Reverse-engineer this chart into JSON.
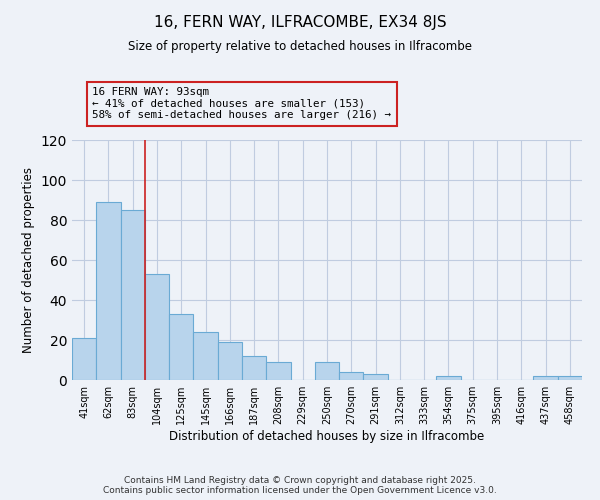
{
  "title": "16, FERN WAY, ILFRACOMBE, EX34 8JS",
  "subtitle": "Size of property relative to detached houses in Ilfracombe",
  "xlabel": "Distribution of detached houses by size in Ilfracombe",
  "ylabel": "Number of detached properties",
  "categories": [
    "41sqm",
    "62sqm",
    "83sqm",
    "104sqm",
    "125sqm",
    "145sqm",
    "166sqm",
    "187sqm",
    "208sqm",
    "229sqm",
    "250sqm",
    "270sqm",
    "291sqm",
    "312sqm",
    "333sqm",
    "354sqm",
    "375sqm",
    "395sqm",
    "416sqm",
    "437sqm",
    "458sqm"
  ],
  "values": [
    21,
    89,
    85,
    53,
    33,
    24,
    19,
    12,
    9,
    0,
    9,
    4,
    3,
    0,
    0,
    2,
    0,
    0,
    0,
    2,
    2
  ],
  "bar_color": "#b8d4ec",
  "bar_edge_color": "#6aaad4",
  "vline_x": 2.5,
  "vline_color": "#cc2222",
  "annotation_line1": "16 FERN WAY: 93sqm",
  "annotation_line2": "← 41% of detached houses are smaller (153)",
  "annotation_line3": "58% of semi-detached houses are larger (216) →",
  "annotation_box_color": "#cc2222",
  "ylim": [
    0,
    120
  ],
  "yticks": [
    0,
    20,
    40,
    60,
    80,
    100,
    120
  ],
  "footer1": "Contains HM Land Registry data © Crown copyright and database right 2025.",
  "footer2": "Contains public sector information licensed under the Open Government Licence v3.0.",
  "background_color": "#eef2f8",
  "grid_color": "#c0cce0"
}
